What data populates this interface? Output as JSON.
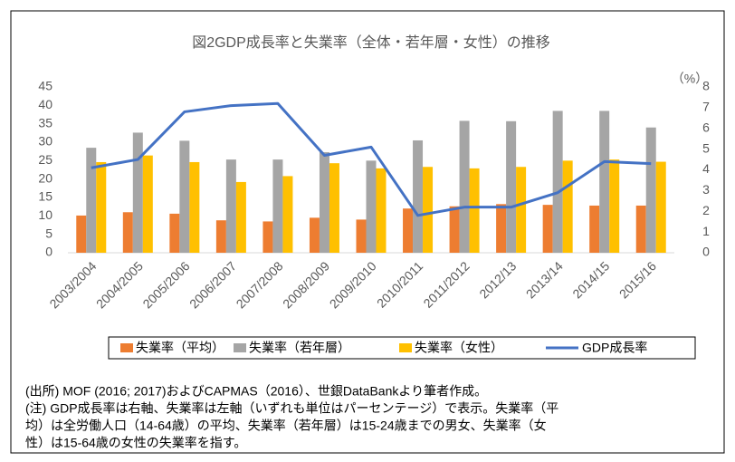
{
  "chart_data": {
    "type": "bar",
    "title": "図2GDP成長率と失業率（全体・若年層・女性）の推移",
    "y2_unit": "（%）",
    "categories": [
      "2003/2004",
      "2004/2005",
      "2005/2006",
      "2006/2007",
      "2007/2008",
      "2008/2009",
      "2009/2010",
      "2010/2011",
      "2011/2012",
      "2012/13",
      "2013/14",
      "2014/15",
      "2015/16"
    ],
    "series": [
      {
        "name": "失業率（平均）",
        "color": "#ed7d31",
        "type": "bar",
        "values": [
          10.1,
          11.0,
          10.6,
          8.8,
          8.5,
          9.5,
          9.0,
          12.0,
          12.6,
          13.2,
          13.0,
          12.8,
          12.8
        ]
      },
      {
        "name": "失業率（若年層）",
        "color": "#a5a5a5",
        "type": "bar",
        "values": [
          28.5,
          32.6,
          30.4,
          25.3,
          25.3,
          27.3,
          25.0,
          30.5,
          35.8,
          35.7,
          38.5,
          38.5,
          34.0
        ]
      },
      {
        "name": "失業率（女性）",
        "color": "#ffc000",
        "type": "bar",
        "values": [
          24.6,
          26.4,
          24.6,
          19.2,
          20.8,
          24.3,
          22.9,
          23.3,
          22.9,
          23.3,
          25.0,
          25.3,
          24.7
        ]
      },
      {
        "name": "GDP成長率",
        "color": "#4472c4",
        "type": "line",
        "axis": "y2",
        "values": [
          4.1,
          4.5,
          6.8,
          7.1,
          7.2,
          4.7,
          5.1,
          1.8,
          2.2,
          2.2,
          2.9,
          4.4,
          4.3
        ]
      }
    ],
    "ylim": [
      0,
      45
    ],
    "yticks": [
      0,
      5,
      10,
      15,
      20,
      25,
      30,
      35,
      40,
      45
    ],
    "y2lim": [
      0,
      8
    ],
    "y2ticks": [
      0,
      1,
      2,
      3,
      4,
      5,
      6,
      7,
      8
    ],
    "legend": "bottom"
  },
  "notes": {
    "source": "(出所) MOF (2016; 2017)およびCAPMAS（2016）、世銀DataBankより筆者作成。",
    "lines": [
      "(注) GDP成長率は右軸、失業率は左軸（いずれも単位はパーセンテージ）で表示。失業率（平",
      "均）は全労働人口（14-64歳）の平均、失業率（若年層）は15-24歳までの男女、失業率（女",
      "性）は15-64歳の女性の失業率を指す。"
    ]
  }
}
